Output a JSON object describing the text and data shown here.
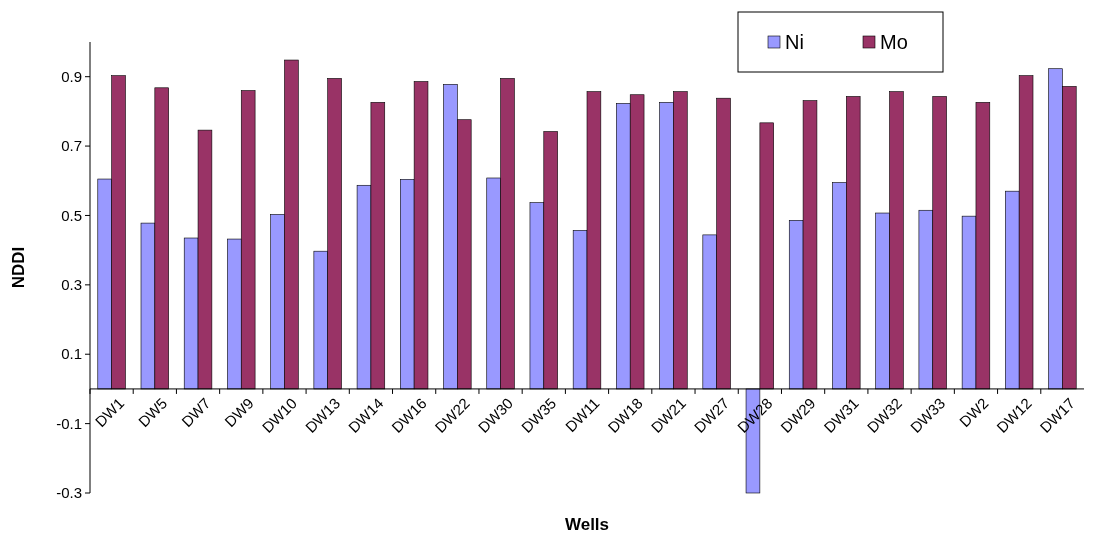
{
  "chart_data": {
    "type": "bar",
    "xlabel": "Wells",
    "ylabel": "NDDI",
    "categories": [
      "DW1",
      "DW5",
      "DW7",
      "DW9",
      "DW10",
      "DW13",
      "DW14",
      "DW16",
      "DW22",
      "DW30",
      "DW35",
      "DW11",
      "DW18",
      "DW21",
      "DW27",
      "DW28",
      "DW29",
      "DW31",
      "DW32",
      "DW33",
      "DW2",
      "DW12",
      "DW17"
    ],
    "series": [
      {
        "name": "Ni",
        "color": "#9999ff",
        "values": [
          0.605,
          0.478,
          0.435,
          0.432,
          0.503,
          0.397,
          0.587,
          0.604,
          0.878,
          0.608,
          0.537,
          0.457,
          0.823,
          0.826,
          0.444,
          -0.3,
          0.486,
          0.595,
          0.507,
          0.515,
          0.498,
          0.57,
          0.923
        ]
      },
      {
        "name": "Mo",
        "color": "#993366",
        "values": [
          0.903,
          0.868,
          0.746,
          0.86,
          0.948,
          0.895,
          0.826,
          0.886,
          0.776,
          0.895,
          0.742,
          0.857,
          0.848,
          0.857,
          0.838,
          0.767,
          0.831,
          0.843,
          0.857,
          0.843,
          0.826,
          0.903,
          0.872
        ]
      }
    ],
    "ylim": [
      -0.3,
      1.0
    ],
    "yticks": [
      -0.3,
      -0.1,
      0.1,
      0.3,
      0.5,
      0.7,
      0.9
    ],
    "grid": false,
    "legend": "top right"
  }
}
